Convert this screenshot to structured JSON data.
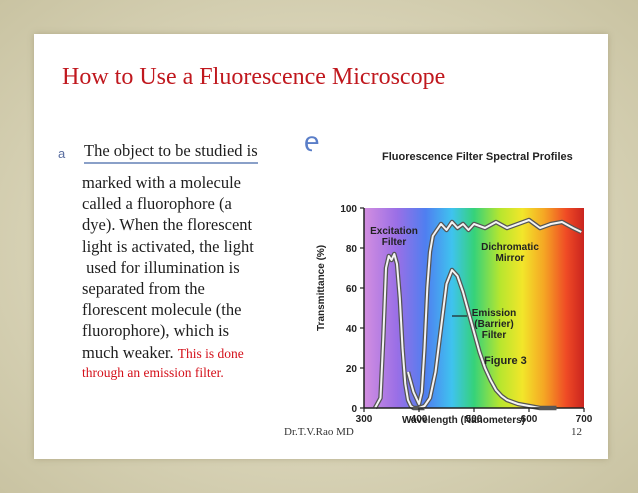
{
  "slide": {
    "title": "How to Use a Fluorescence Microscope",
    "bullet": "a",
    "first_line": "The object to be studied is",
    "big_letter": "e",
    "body_lines": [
      "marked with a molecule",
      "called a fluorophore (a",
      "dye). When the florescent",
      "light is activated, the light",
      " used for illumination is",
      "separated from the",
      "florescent molecule (the",
      "fluorophore), which is"
    ],
    "last_line": "much weaker.",
    "red_text_1": "This is done",
    "red_text_2": "through an emission filter.",
    "footer_name": "Dr.T.V.Rao MD",
    "footer_page": "12"
  },
  "colors": {
    "title": "#c0181e",
    "red_text": "#d4101a",
    "accent_blue": "#5a7ec8"
  },
  "chart_data": {
    "type": "line",
    "title": "Fluorescence Filter Spectral Profiles",
    "xlabel": "Wavelength (Nanometers)",
    "ylabel": "Transmittance (%)",
    "xlim": [
      300,
      700
    ],
    "ylim": [
      0,
      100
    ],
    "x_ticks": [
      300,
      400,
      500,
      600,
      700
    ],
    "y_ticks": [
      0,
      20,
      40,
      60,
      80,
      100
    ],
    "annotation": "Figure 3",
    "labels": [
      "Excitation Filter",
      "Dichromatic Mirror",
      "Emission (Barrier) Filter"
    ],
    "series": [
      {
        "name": "Excitation Filter",
        "x": [
          320,
          330,
          335,
          340,
          345,
          350,
          355,
          360,
          365,
          370,
          375,
          380,
          385,
          390,
          395,
          400,
          410
        ],
        "y": [
          0,
          5,
          35,
          70,
          76,
          74,
          77,
          72,
          55,
          30,
          12,
          4,
          1,
          0,
          0,
          0,
          0
        ]
      },
      {
        "name": "Dichromatic Mirror",
        "x": [
          380,
          390,
          400,
          405,
          410,
          415,
          420,
          425,
          430,
          440,
          450,
          460,
          470,
          480,
          490,
          500,
          520,
          540,
          560,
          580,
          600,
          620,
          640,
          660,
          680,
          695
        ],
        "y": [
          18,
          8,
          2,
          8,
          30,
          60,
          78,
          86,
          88,
          92,
          89,
          93,
          90,
          92,
          89,
          92,
          90,
          93,
          90,
          92,
          94,
          90,
          92,
          93,
          90,
          88
        ]
      },
      {
        "name": "Emission (Barrier) Filter",
        "x": [
          400,
          410,
          420,
          430,
          440,
          450,
          460,
          470,
          480,
          490,
          500,
          510,
          520,
          530,
          540,
          550,
          560,
          570,
          580,
          600,
          620,
          650
        ],
        "y": [
          0,
          1,
          5,
          18,
          40,
          62,
          69,
          66,
          58,
          48,
          38,
          28,
          20,
          14,
          9,
          6,
          4,
          3,
          2,
          1,
          0,
          0
        ]
      }
    ]
  }
}
